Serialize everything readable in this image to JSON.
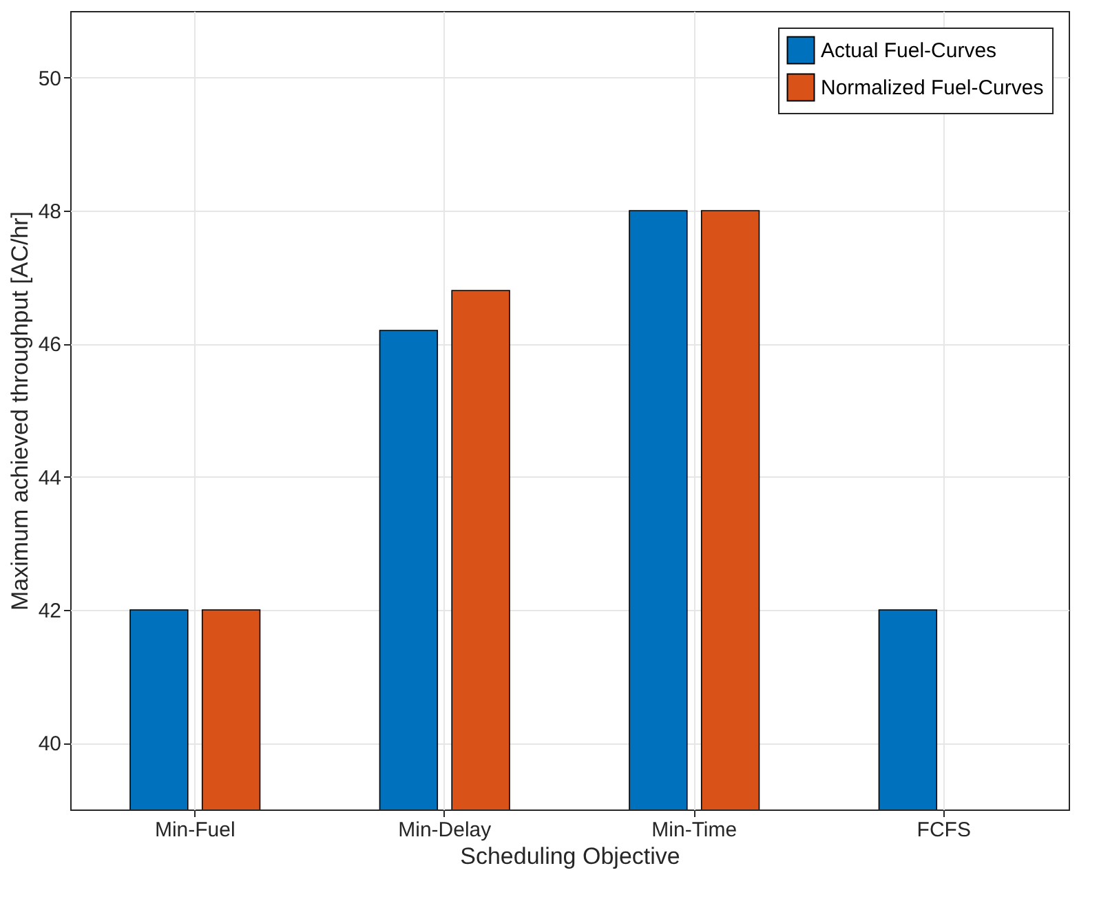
{
  "chart_data": {
    "type": "bar",
    "categories": [
      "Min-Fuel",
      "Min-Delay",
      "Min-Time",
      "FCFS"
    ],
    "series": [
      {
        "name": "Actual Fuel-Curves",
        "color": "#0072bd",
        "values": [
          42,
          46.2,
          48,
          42
        ]
      },
      {
        "name": "Normalized Fuel-Curves",
        "color": "#d95319",
        "values": [
          42,
          46.8,
          48,
          null
        ]
      }
    ],
    "xlabel": "Scheduling Objective",
    "ylabel": "Maximum achieved throughput [AC/hr]",
    "ylim": [
      39,
      51
    ],
    "yticks": [
      40,
      42,
      44,
      46,
      48,
      50
    ],
    "grid": true,
    "legend": "top right"
  }
}
